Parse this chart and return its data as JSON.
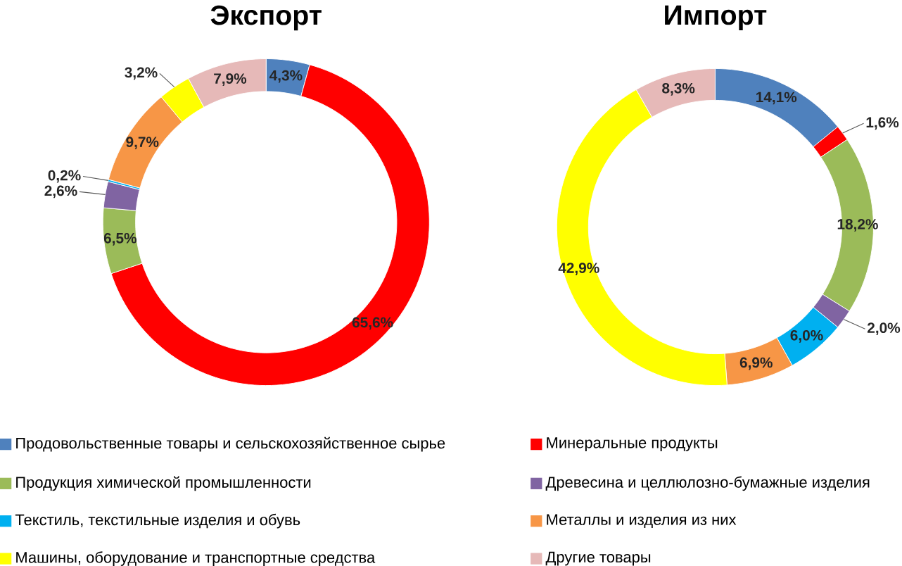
{
  "chart_data": {
    "type": "donut",
    "categories": [
      "Продовольственные товары и сельскохозяйственное сырье",
      "Минеральные продукты",
      "Продукция химической промышленности",
      "Древесина и целлюлозно-бумажные изделия",
      "Текстиль, текстильные изделия и обувь",
      "Металлы и изделия из них",
      "Машины, оборудование и транспортные средства",
      "Другие товары"
    ],
    "colors": [
      "#4f81bd",
      "#ff0000",
      "#9bbb59",
      "#8064a2",
      "#00b0f0",
      "#f79646",
      "#ffff00",
      "#e6b9b8"
    ],
    "series": [
      {
        "name": "Экспорт",
        "values": [
          4.3,
          65.6,
          6.5,
          2.6,
          0.2,
          9.7,
          3.2,
          7.9
        ],
        "value_labels": [
          "4,3%",
          "65,6%",
          "6,5%",
          "2,6%",
          "0,2%",
          "9,7%",
          "3,2%",
          "7,9%"
        ]
      },
      {
        "name": "Импорт",
        "values": [
          14.1,
          1.6,
          18.2,
          2.0,
          6.0,
          6.9,
          42.9,
          8.3
        ],
        "value_labels": [
          "14,1%",
          "1,6%",
          "18,2%",
          "2,0%",
          "6,0%",
          "6,9%",
          "42,9%",
          "8,3%"
        ]
      }
    ],
    "legend": "bottom"
  }
}
